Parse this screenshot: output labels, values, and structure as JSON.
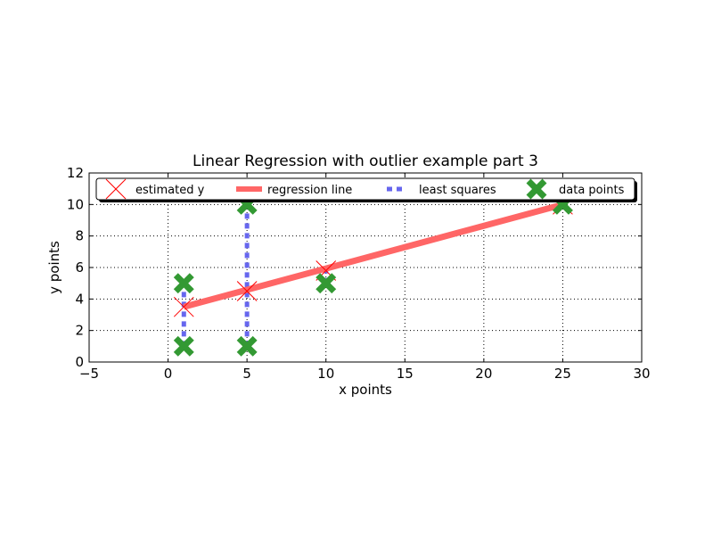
{
  "chart_data": {
    "type": "scatter",
    "title": "Linear Regression with outlier example part 3",
    "xlabel": "x points",
    "ylabel": "y points",
    "xlim": [
      -5,
      30
    ],
    "ylim": [
      0,
      12
    ],
    "xticks": [
      -5,
      0,
      5,
      10,
      15,
      20,
      25,
      30
    ],
    "yticks": [
      0,
      2,
      4,
      6,
      8,
      10,
      12
    ],
    "xtick_labels": [
      "−5",
      "0",
      "5",
      "10",
      "15",
      "20",
      "25",
      "30"
    ],
    "ytick_labels": [
      "0",
      "2",
      "4",
      "6",
      "8",
      "10",
      "12"
    ],
    "grid": true,
    "legend_position": "top",
    "series": [
      {
        "name": "estimated y",
        "style": "x-marker",
        "color": "#ff0000",
        "x": [
          1,
          5,
          10,
          25
        ],
        "y": [
          3.5,
          4.5,
          5.8,
          10
        ]
      },
      {
        "name": "regression line",
        "style": "line",
        "color": "#ff6666",
        "x": [
          1,
          25
        ],
        "y": [
          3.5,
          10
        ]
      },
      {
        "name": "least squares",
        "style": "dashed-segments",
        "color": "#6666ee",
        "segments": [
          {
            "x": 1,
            "y_from": 1,
            "y_to": 5
          },
          {
            "x": 5,
            "y_from": 1,
            "y_to": 10
          },
          {
            "x": 10,
            "y_from": 5,
            "y_to": 6
          }
        ]
      },
      {
        "name": "data points",
        "style": "x-marker",
        "color": "#339933",
        "x": [
          1,
          1,
          5,
          5,
          10,
          25
        ],
        "y": [
          1,
          5,
          1,
          10,
          5,
          10
        ]
      }
    ]
  }
}
